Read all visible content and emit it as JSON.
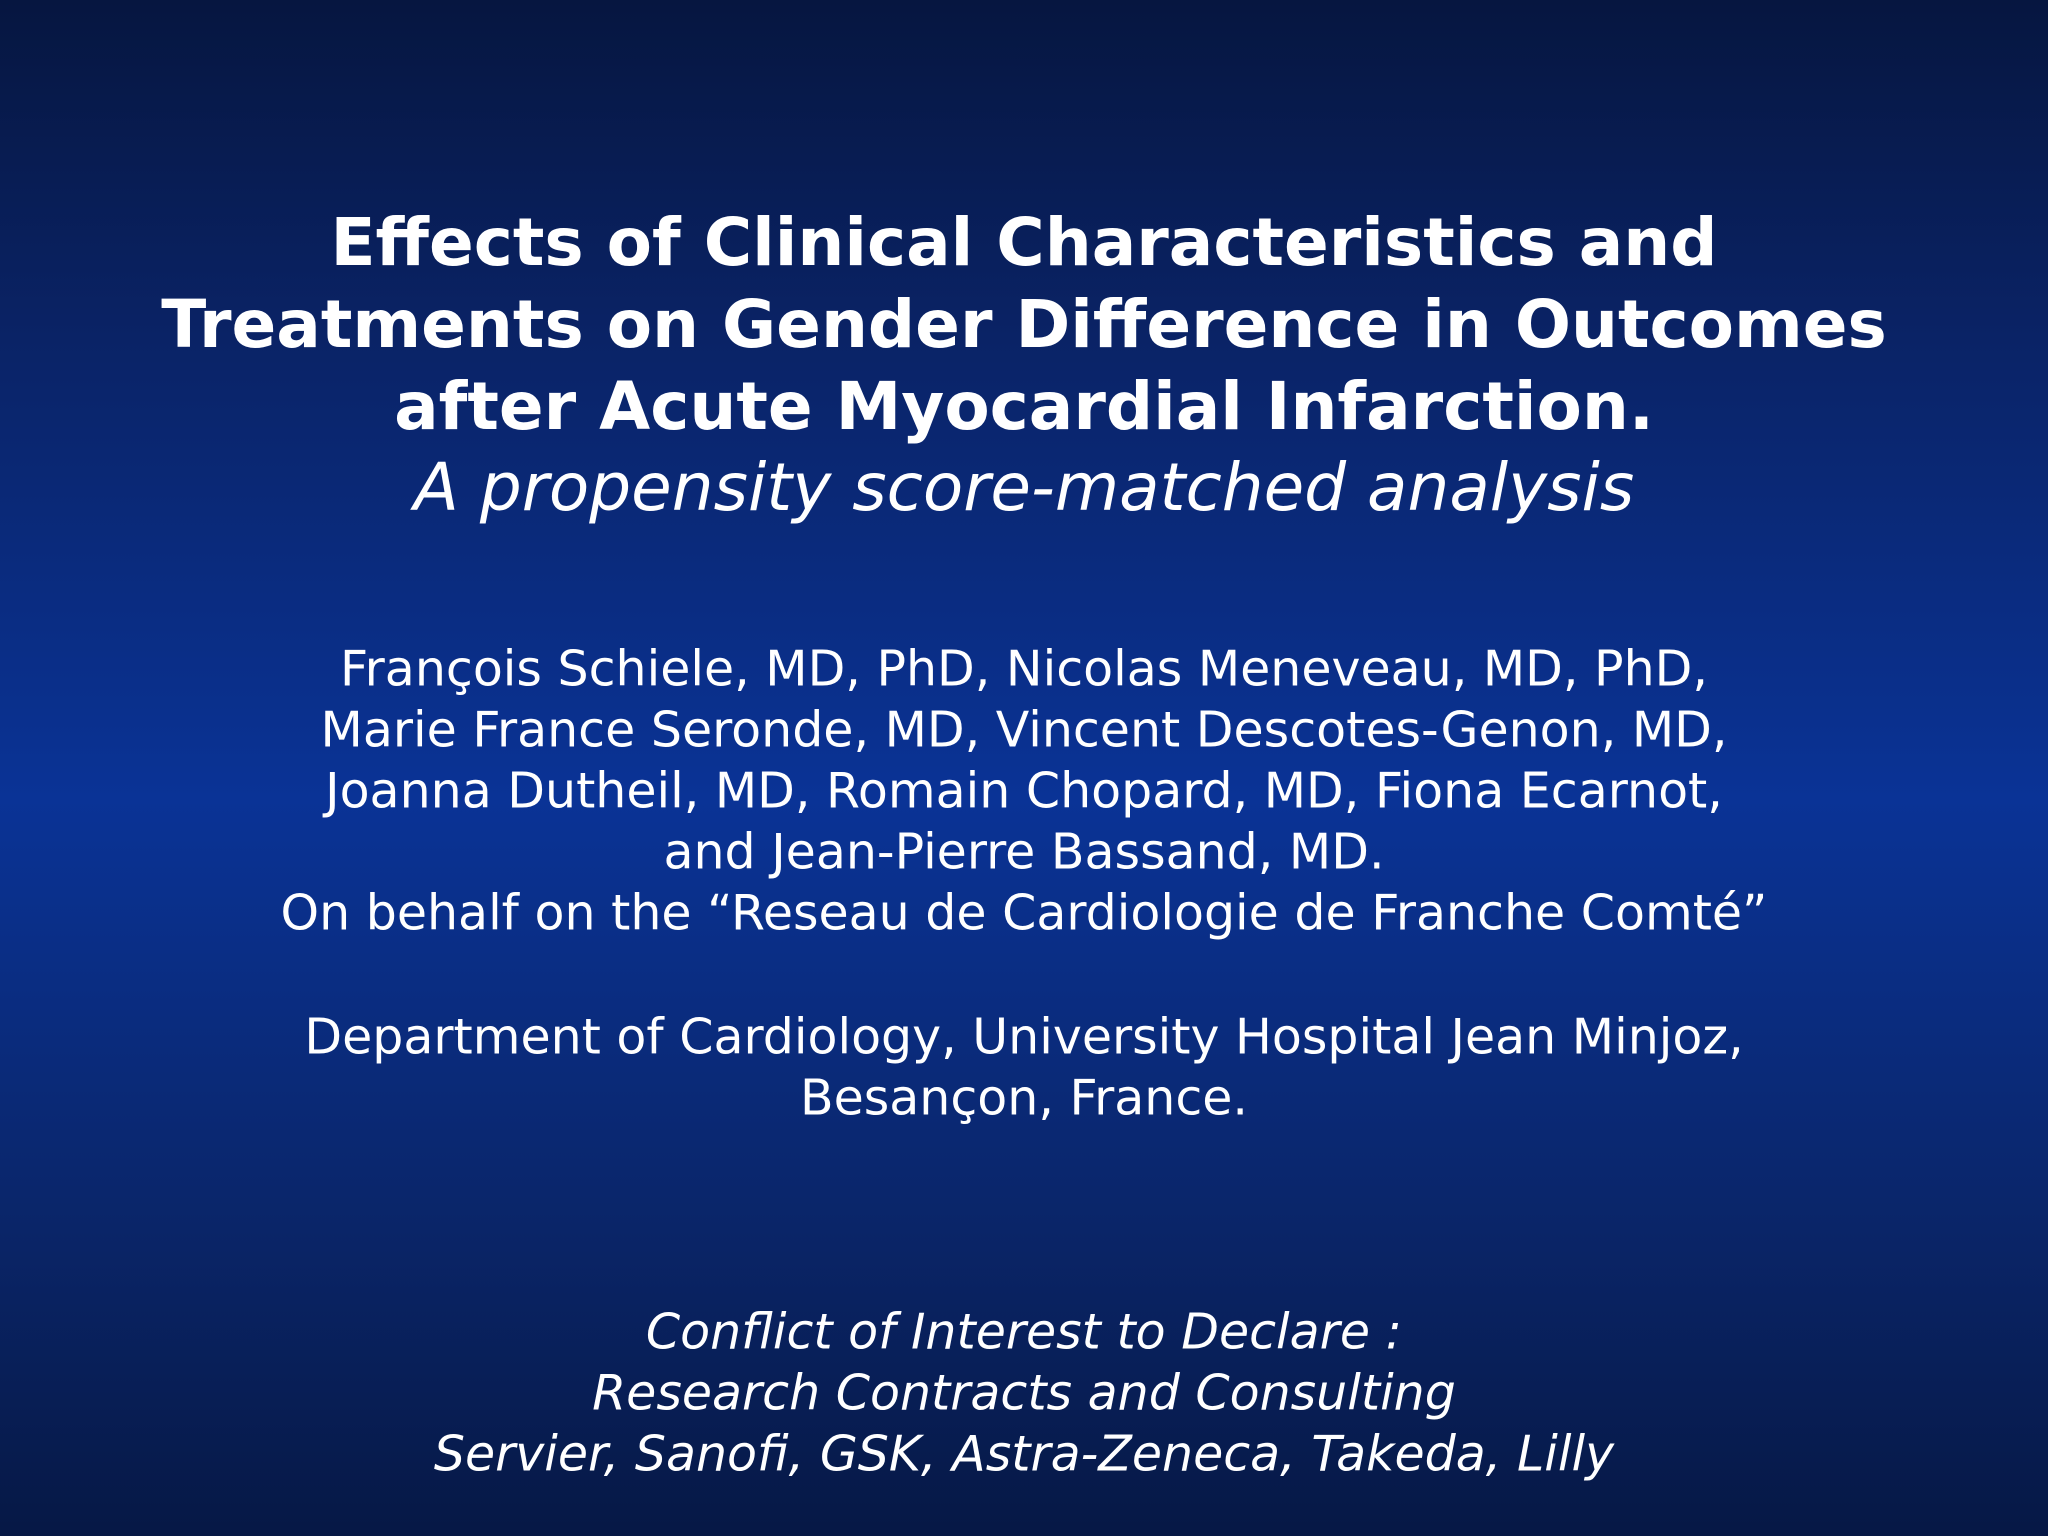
{
  "slide": {
    "title_lines": [
      "Effects of Clinical Characteristics and",
      "Treatments on Gender Difference in Outcomes",
      "after Acute Myocardial Infarction."
    ],
    "subtitle": "A propensity score-matched analysis",
    "authors_lines": [
      "François Schiele, MD, PhD, Nicolas Meneveau, MD, PhD,",
      "Marie France Seronde, MD, Vincent Descotes-Genon, MD,",
      "Joanna Dutheil, MD, Romain Chopard, MD, Fiona Ecarnot,",
      "and Jean-Pierre Bassand, MD.",
      "On behalf on the “Reseau de Cardiologie de Franche Comté”"
    ],
    "affiliation_lines": [
      "Department of Cardiology, University Hospital Jean Minjoz,",
      "Besançon, France."
    ],
    "conflict_lines": [
      "Conflict of Interest to Declare :",
      "Research Contracts and Consulting",
      "Servier, Sanofi, GSK, Astra-Zeneca, Takeda, Lilly"
    ]
  }
}
